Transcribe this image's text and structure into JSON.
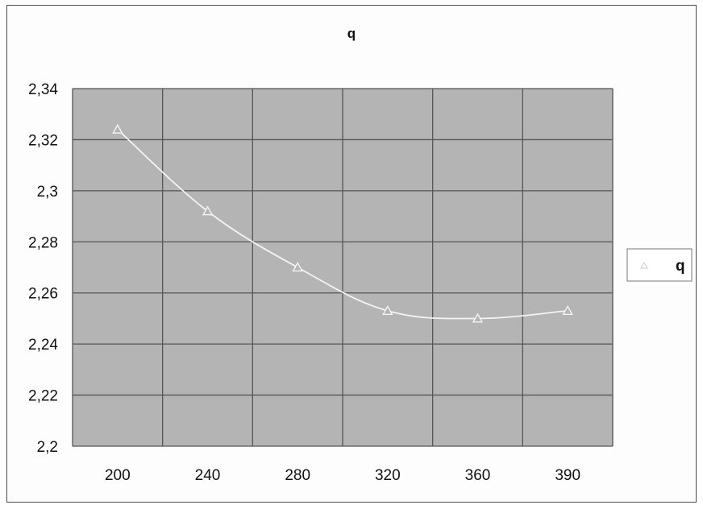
{
  "chart_data": {
    "type": "line",
    "title": "q",
    "xlabel": "",
    "ylabel": "",
    "categories": [
      "200",
      "240",
      "280",
      "320",
      "360",
      "390"
    ],
    "series": [
      {
        "name": "q",
        "values": [
          2.324,
          2.292,
          2.27,
          2.253,
          2.25,
          2.253
        ]
      }
    ],
    "ylim": [
      2.2,
      2.34
    ],
    "y_ticks": [
      "2,2",
      "2,22",
      "2,24",
      "2,26",
      "2,28",
      "2,3",
      "2,32",
      "2,34"
    ],
    "y_tick_values": [
      2.2,
      2.22,
      2.24,
      2.26,
      2.28,
      2.3,
      2.32,
      2.34
    ],
    "grid": true,
    "legend_position": "right",
    "colors": {
      "plot_background": "#b4b4b4",
      "grid": "#555555",
      "series_line": "#f4f4f4",
      "marker": "#f4f4f4"
    },
    "marker": "triangle"
  }
}
